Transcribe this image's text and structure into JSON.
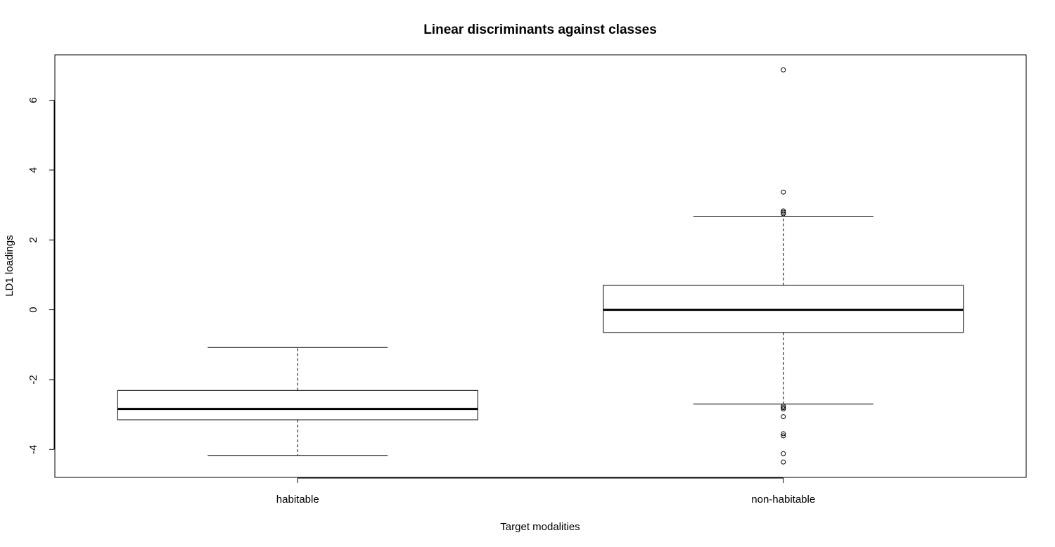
{
  "chart_data": {
    "type": "boxplot",
    "title": "Linear discriminants against classes",
    "xlabel": "Target modalities",
    "ylabel": "LD1 loadings",
    "ylim": [
      -4.8,
      7.3
    ],
    "yticks": [
      -4,
      -2,
      0,
      2,
      4,
      6
    ],
    "ytick_labels": [
      "-4",
      "-2",
      "0",
      "2",
      "4",
      "6"
    ],
    "grid": false,
    "legend": "none",
    "categories": [
      "habitable",
      "non-habitable"
    ],
    "boxes": [
      {
        "category": "habitable",
        "whisker_low": -4.17,
        "q1": -3.15,
        "median": -2.84,
        "q3": -2.31,
        "whisker_high": -1.08,
        "outliers": []
      },
      {
        "category": "non-habitable",
        "whisker_low": -2.7,
        "q1": -0.65,
        "median": 0.0,
        "q3": 0.7,
        "whisker_high": 2.68,
        "outliers": [
          6.87,
          3.37,
          2.83,
          2.79,
          2.75,
          -2.76,
          -2.8,
          -2.84,
          -3.06,
          -3.55,
          -3.61,
          -4.12,
          -4.36
        ]
      }
    ]
  }
}
